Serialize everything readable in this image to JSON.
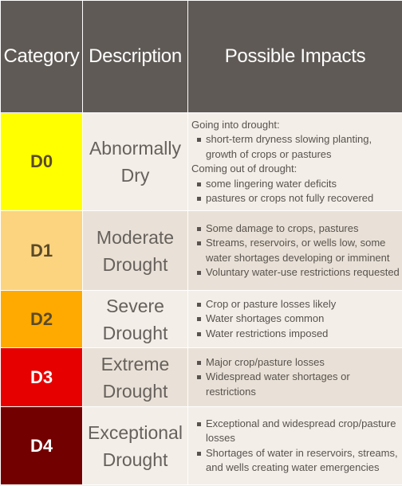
{
  "table": {
    "headers": [
      "Category",
      "Description",
      "Possible Impacts"
    ],
    "rows": [
      {
        "category": "D0",
        "category_color": "#ffff00",
        "category_text_color": "#5a4a28",
        "description": [
          "Abnormally",
          "Dry"
        ],
        "sections": [
          {
            "heading": "Going into drought:",
            "items": [
              "short-term dryness slowing planting, growth of crops or pastures"
            ]
          },
          {
            "heading": "Coming out of drought:",
            "items": [
              "some lingering water deficits",
              "pastures or crops not fully recovered"
            ]
          }
        ]
      },
      {
        "category": "D1",
        "category_color": "#fcd37f",
        "category_text_color": "#5a4a28",
        "description": [
          "Moderate",
          "Drought"
        ],
        "sections": [
          {
            "heading": "",
            "items": [
              "Some damage to crops, pastures",
              "Streams, reservoirs, or wells low, some water shortages developing or imminent",
              "Voluntary water-use restrictions requested"
            ]
          }
        ]
      },
      {
        "category": "D2",
        "category_color": "#ffaa00",
        "category_text_color": "#5a4a28",
        "description": [
          "Severe",
          "Drought"
        ],
        "sections": [
          {
            "heading": "",
            "items": [
              "Crop or pasture losses likely",
              "Water shortages common",
              "Water restrictions imposed"
            ]
          }
        ]
      },
      {
        "category": "D3",
        "category_color": "#e60000",
        "category_text_color": "#ffffff",
        "description": [
          "Extreme",
          "Drought"
        ],
        "sections": [
          {
            "heading": "",
            "items": [
              "Major crop/pasture losses",
              "Widespread water shortages or restrictions"
            ]
          }
        ]
      },
      {
        "category": "D4",
        "category_color": "#730000",
        "category_text_color": "#ffffff",
        "description": [
          "Exceptional",
          "Drought"
        ],
        "sections": [
          {
            "heading": "",
            "items": [
              "Exceptional and widespread crop/pasture losses",
              "Shortages of water in reservoirs, streams, and wells creating water emergencies"
            ]
          }
        ]
      }
    ]
  }
}
